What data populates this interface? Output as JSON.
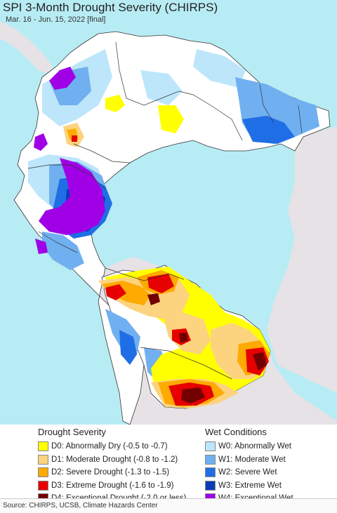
{
  "title": "SPI 3-Month Drought Severity (CHIRPS)",
  "subtitle": "Mar. 16 - Jun. 15, 2022 [final]",
  "colors": {
    "ocean": "#b8ecf4",
    "land_other": "#e6e2e6",
    "land_normal": "#ffffff",
    "border": "#333333"
  },
  "drought_legend": {
    "heading": "Drought Severity",
    "items": [
      {
        "label": "D0: Abnormally Dry (-0.5 to -0.7)",
        "color": "#ffff00"
      },
      {
        "label": "D1: Moderate Drought (-0.8 to -1.2)",
        "color": "#fcd37f"
      },
      {
        "label": "D2: Severe Drought (-1.3 to -1.5)",
        "color": "#ffaa00"
      },
      {
        "label": "D3: Extreme Drought (-1.6 to -1.9)",
        "color": "#e60000"
      },
      {
        "label": "D4: Exceptional Drought (-2.0 or less)",
        "color": "#730000"
      }
    ]
  },
  "wet_legend": {
    "heading": "Wet Conditions",
    "items": [
      {
        "label": "W0: Abnormally Wet",
        "color": "#bde6fa"
      },
      {
        "label": "W1: Moderate Wet",
        "color": "#70b0f0"
      },
      {
        "label": "W2: Severe Wet",
        "color": "#1f6ee6"
      },
      {
        "label": "W3: Extreme Wet",
        "color": "#0a3cb4"
      },
      {
        "label": "W4: Exceptional Wet",
        "color": "#a000e6"
      }
    ]
  },
  "source": "Source: CHIRPS, UCSB, Climate Hazards Center"
}
